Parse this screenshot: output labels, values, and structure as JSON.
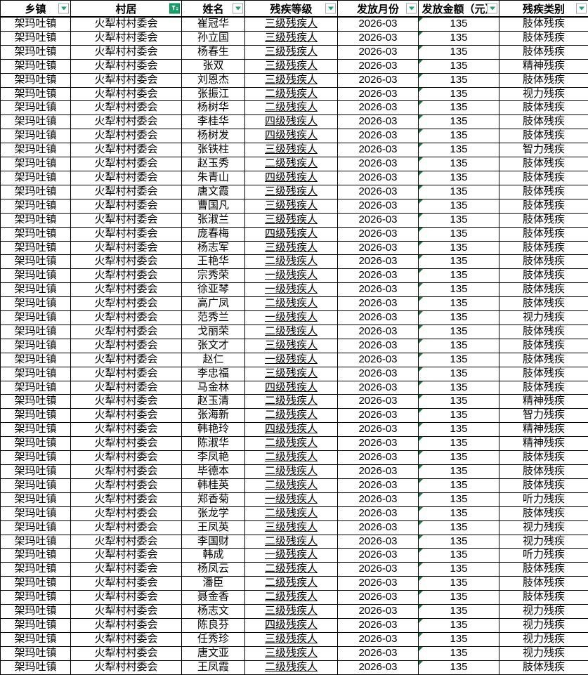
{
  "colors": {
    "border": "#000000",
    "filter_active_green": "#17A06B",
    "filter_arrow_green": "#1E9E6A",
    "cell_corner_triangle_green": "#217346"
  },
  "table": {
    "columns": [
      {
        "label": "乡镇",
        "filter": "dropdown"
      },
      {
        "label": "村居",
        "filter": "active"
      },
      {
        "label": "姓名",
        "filter": "dropdown"
      },
      {
        "label": "残疾等级",
        "filter": "dropdown"
      },
      {
        "label": "发放月份",
        "filter": "dropdown"
      },
      {
        "label": "发放金额（元）",
        "filter": "dropdown"
      },
      {
        "label": "残疾类别",
        "filter": "dropdown"
      }
    ],
    "common": {
      "township": "架玛吐镇",
      "village": "火犁村村委会",
      "month": "2026-03",
      "amount": "135"
    },
    "rows": [
      {
        "name": "崔冠华",
        "level": "三级残疾人",
        "category": "肢体残疾"
      },
      {
        "name": "孙立国",
        "level": "三级残疾人",
        "category": "肢体残疾"
      },
      {
        "name": "杨春生",
        "level": "三级残疾人",
        "category": "肢体残疾"
      },
      {
        "name": "张双",
        "level": "三级残疾人",
        "category": "精神残疾"
      },
      {
        "name": "刘恩杰",
        "level": "三级残疾人",
        "category": "肢体残疾"
      },
      {
        "name": "张振江",
        "level": "二级残疾人",
        "category": "视力残疾"
      },
      {
        "name": "杨树华",
        "level": "二级残疾人",
        "category": "肢体残疾"
      },
      {
        "name": "李桂华",
        "level": "四级残疾人",
        "category": "肢体残疾"
      },
      {
        "name": "杨树发",
        "level": "四级残疾人",
        "category": "肢体残疾"
      },
      {
        "name": "张铁柱",
        "level": "三级残疾人",
        "category": "智力残疾"
      },
      {
        "name": "赵玉秀",
        "level": "二级残疾人",
        "category": "肢体残疾"
      },
      {
        "name": "朱青山",
        "level": "四级残疾人",
        "category": "肢体残疾"
      },
      {
        "name": "唐文霞",
        "level": "三级残疾人",
        "category": "肢体残疾"
      },
      {
        "name": "曹国凡",
        "level": "三级残疾人",
        "category": "肢体残疾"
      },
      {
        "name": "张淑兰",
        "level": "三级残疾人",
        "category": "肢体残疾"
      },
      {
        "name": "庞春梅",
        "level": "四级残疾人",
        "category": "肢体残疾"
      },
      {
        "name": "杨志军",
        "level": "三级残疾人",
        "category": "肢体残疾"
      },
      {
        "name": "王艳华",
        "level": "二级残疾人",
        "category": "肢体残疾"
      },
      {
        "name": "宗秀荣",
        "level": "一级残疾人",
        "category": "肢体残疾"
      },
      {
        "name": "徐亚琴",
        "level": "一级残疾人",
        "category": "肢体残疾"
      },
      {
        "name": "高广凤",
        "level": "二级残疾人",
        "category": "肢体残疾"
      },
      {
        "name": "范秀兰",
        "level": "一级残疾人",
        "category": "视力残疾"
      },
      {
        "name": "戈丽荣",
        "level": "二级残疾人",
        "category": "肢体残疾"
      },
      {
        "name": "张文才",
        "level": "三级残疾人",
        "category": "肢体残疾"
      },
      {
        "name": "赵仁",
        "level": "一级残疾人",
        "category": "肢体残疾"
      },
      {
        "name": "李忠福",
        "level": "三级残疾人",
        "category": "肢体残疾"
      },
      {
        "name": "马金林",
        "level": "四级残疾人",
        "category": "肢体残疾"
      },
      {
        "name": "赵玉清",
        "level": "二级残疾人",
        "category": "精神残疾"
      },
      {
        "name": "张海新",
        "level": "二级残疾人",
        "category": "智力残疾"
      },
      {
        "name": "韩艳玲",
        "level": "四级残疾人",
        "category": "精神残疾"
      },
      {
        "name": "陈淑华",
        "level": "二级残疾人",
        "category": "精神残疾"
      },
      {
        "name": "李凤艳",
        "level": "二级残疾人",
        "category": "肢体残疾"
      },
      {
        "name": "毕德本",
        "level": "二级残疾人",
        "category": "肢体残疾"
      },
      {
        "name": "韩桂英",
        "level": "二级残疾人",
        "category": "肢体残疾"
      },
      {
        "name": "郑香菊",
        "level": "一级残疾人",
        "category": "听力残疾"
      },
      {
        "name": "张龙学",
        "level": "二级残疾人",
        "category": "肢体残疾"
      },
      {
        "name": "王凤英",
        "level": "三级残疾人",
        "category": "视力残疾"
      },
      {
        "name": "李国财",
        "level": "二级残疾人",
        "category": "视力残疾"
      },
      {
        "name": "韩成",
        "level": "一级残疾人",
        "category": "听力残疾"
      },
      {
        "name": "杨凤云",
        "level": "二级残疾人",
        "category": "肢体残疾"
      },
      {
        "name": "潘臣",
        "level": "二级残疾人",
        "category": "肢体残疾"
      },
      {
        "name": "聂金香",
        "level": "二级残疾人",
        "category": "肢体残疾"
      },
      {
        "name": "杨志文",
        "level": "三级残疾人",
        "category": "视力残疾"
      },
      {
        "name": "陈良芬",
        "level": "四级残疾人",
        "category": "视力残疾"
      },
      {
        "name": "任秀珍",
        "level": "三级残疾人",
        "category": "视力残疾"
      },
      {
        "name": "唐文亚",
        "level": "三级残疾人",
        "category": "视力残疾"
      },
      {
        "name": "王凤霞",
        "level": "二级残疾人",
        "category": "肢体残疾"
      }
    ]
  }
}
